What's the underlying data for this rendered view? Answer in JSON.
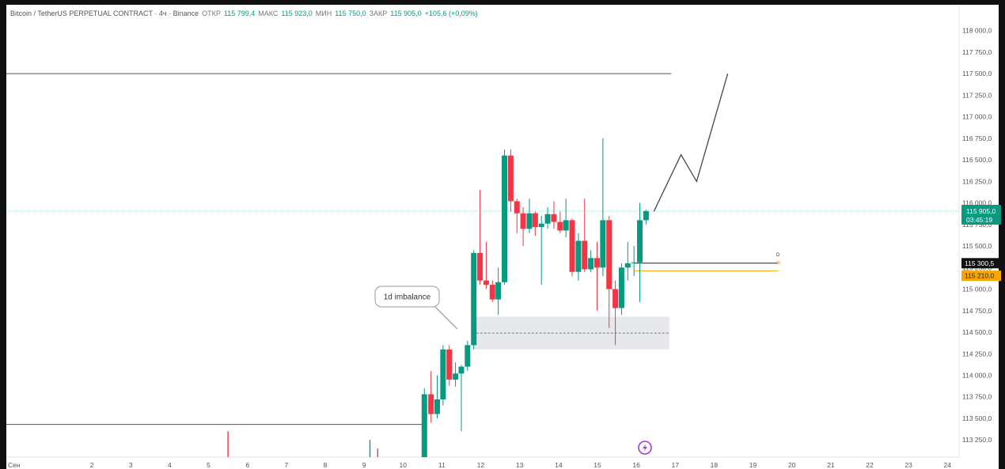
{
  "legend": {
    "symbol": "Bitcoin / TetherUS PERPETUAL CONTRACT · 4ч · Binance",
    "open_label": "ОТКР",
    "open": "115 799,4",
    "high_label": "МАКС",
    "high": "115 923,0",
    "low_label": "МИН",
    "low": "115 750,0",
    "close_label": "ЗАКР",
    "close": "115 905,0",
    "change": "+105,6 (+0,09%)"
  },
  "price_badges": {
    "last_price": "115 905,0",
    "countdown": "03:45:19",
    "level_1": "115 300,5",
    "level_2": "115 210,0"
  },
  "annotation": {
    "imbalance_label": "1d imbalance",
    "level_tag_1": "D",
    "level_tag_2": "W"
  },
  "colors": {
    "up": "#089981",
    "down": "#f23645",
    "last_price": "#089981",
    "level_1_badge": "#111111",
    "level_2_badge": "#f7a600",
    "zone": "#dfe0e6"
  },
  "icons": {
    "lightning": "lightning-icon"
  },
  "chart_data": {
    "type": "candlestick",
    "ylim": [
      113050,
      118300
    ],
    "y_ticks": [
      118000,
      117750,
      117500,
      117250,
      117000,
      116750,
      116500,
      116250,
      116000,
      115750,
      115500,
      115250,
      115000,
      114750,
      114500,
      114250,
      114000,
      113750,
      113500,
      113250
    ],
    "y_tick_labels": [
      "118 000,0",
      "117 750,0",
      "117 500,0",
      "117 250,0",
      "117 000,0",
      "116 750,0",
      "116 500,0",
      "116 250,0",
      "116 000,0",
      "115 750,0",
      "115 500,0",
      "115 250,0",
      "115 000,0",
      "114 750,0",
      "114 500,0",
      "114 250,0",
      "114 000,0",
      "113 750,0",
      "113 500,0",
      "113 250,0"
    ],
    "x_ticks": [
      0,
      2,
      3,
      4,
      5,
      6,
      7,
      8,
      9,
      10,
      11,
      12,
      13,
      14,
      15,
      16,
      17,
      18,
      19,
      20,
      21,
      22,
      23,
      24
    ],
    "x_tick_labels": [
      "Сен",
      "2",
      "3",
      "4",
      "5",
      "6",
      "7",
      "8",
      "9",
      "10",
      "11",
      "12",
      "13",
      "14",
      "15",
      "16",
      "17",
      "18",
      "19",
      "20",
      "21",
      "22",
      "23",
      "24"
    ],
    "xlim": [
      -0.2,
      24.3
    ],
    "candles": [
      {
        "t": 10.55,
        "o": 113050,
        "h": 113850,
        "l": 113050,
        "c": 113780
      },
      {
        "t": 10.72,
        "o": 113780,
        "h": 114050,
        "l": 113450,
        "c": 113550
      },
      {
        "t": 10.88,
        "o": 113550,
        "h": 114000,
        "l": 113500,
        "c": 113720
      },
      {
        "t": 11.03,
        "o": 113720,
        "h": 114350,
        "l": 113650,
        "c": 114300
      },
      {
        "t": 11.19,
        "o": 114300,
        "h": 114350,
        "l": 113880,
        "c": 113950
      },
      {
        "t": 11.35,
        "o": 113950,
        "h": 114150,
        "l": 113870,
        "c": 114020
      },
      {
        "t": 11.5,
        "o": 114020,
        "h": 114120,
        "l": 113350,
        "c": 114100
      },
      {
        "t": 11.66,
        "o": 114100,
        "h": 114400,
        "l": 114050,
        "c": 114350
      },
      {
        "t": 11.82,
        "o": 114350,
        "h": 115450,
        "l": 114300,
        "c": 115420
      },
      {
        "t": 11.98,
        "o": 115420,
        "h": 116150,
        "l": 115050,
        "c": 115100
      },
      {
        "t": 12.14,
        "o": 115100,
        "h": 115550,
        "l": 115000,
        "c": 115050
      },
      {
        "t": 12.3,
        "o": 115050,
        "h": 115100,
        "l": 114850,
        "c": 114880
      },
      {
        "t": 12.45,
        "o": 114880,
        "h": 115250,
        "l": 114700,
        "c": 115080
      },
      {
        "t": 12.61,
        "o": 115080,
        "h": 116620,
        "l": 115050,
        "c": 116550
      },
      {
        "t": 12.77,
        "o": 116550,
        "h": 116620,
        "l": 115900,
        "c": 116020
      },
      {
        "t": 12.93,
        "o": 116020,
        "h": 116050,
        "l": 115650,
        "c": 115880
      },
      {
        "t": 13.09,
        "o": 115880,
        "h": 115950,
        "l": 115500,
        "c": 115700
      },
      {
        "t": 13.25,
        "o": 115700,
        "h": 116050,
        "l": 115650,
        "c": 115880
      },
      {
        "t": 13.4,
        "o": 115880,
        "h": 115900,
        "l": 115620,
        "c": 115720
      },
      {
        "t": 13.56,
        "o": 115720,
        "h": 115850,
        "l": 115050,
        "c": 115760
      },
      {
        "t": 13.72,
        "o": 115760,
        "h": 115950,
        "l": 115700,
        "c": 115870
      },
      {
        "t": 13.88,
        "o": 115870,
        "h": 116020,
        "l": 115700,
        "c": 115780
      },
      {
        "t": 14.04,
        "o": 115780,
        "h": 115900,
        "l": 115650,
        "c": 115680
      },
      {
        "t": 14.19,
        "o": 115680,
        "h": 116050,
        "l": 115600,
        "c": 115800
      },
      {
        "t": 14.35,
        "o": 115800,
        "h": 115820,
        "l": 115150,
        "c": 115200
      },
      {
        "t": 14.51,
        "o": 115200,
        "h": 115650,
        "l": 115100,
        "c": 115560
      },
      {
        "t": 14.67,
        "o": 115560,
        "h": 116050,
        "l": 115200,
        "c": 115230
      },
      {
        "t": 14.83,
        "o": 115230,
        "h": 115450,
        "l": 115200,
        "c": 115360
      },
      {
        "t": 14.99,
        "o": 115360,
        "h": 115550,
        "l": 114750,
        "c": 115250
      },
      {
        "t": 15.14,
        "o": 115250,
        "h": 116750,
        "l": 115150,
        "c": 115800
      },
      {
        "t": 15.3,
        "o": 115800,
        "h": 115850,
        "l": 114550,
        "c": 115000
      },
      {
        "t": 15.46,
        "o": 115000,
        "h": 115100,
        "l": 114350,
        "c": 114780
      },
      {
        "t": 15.62,
        "o": 114780,
        "h": 115300,
        "l": 114700,
        "c": 115250
      },
      {
        "t": 15.78,
        "o": 115250,
        "h": 115550,
        "l": 115100,
        "c": 115300
      },
      {
        "t": 15.94,
        "o": 115300,
        "h": 115500,
        "l": 115150,
        "c": 115310
      },
      {
        "t": 16.09,
        "o": 115310,
        "h": 116000,
        "l": 114850,
        "c": 115800
      },
      {
        "t": 16.25,
        "o": 115800,
        "h": 115923,
        "l": 115750,
        "c": 115905
      }
    ],
    "drawings": {
      "horizontal_lines": [
        {
          "price": 117500,
          "t_start": -0.2,
          "t_end": 16.9
        },
        {
          "price": 113430,
          "t_start": -0.2,
          "t_end": 10.5
        }
      ],
      "imbalance_zone": {
        "top": 114680,
        "bottom": 114300,
        "mid": 114490,
        "t_start": 11.78,
        "t_end": 16.85
      },
      "levels": [
        {
          "price": 115300.5,
          "t_start": 15.95,
          "t_end": 19.65
        },
        {
          "price": 115210,
          "t_start": 15.95,
          "t_end": 19.65
        }
      ],
      "projection_path": [
        {
          "t": 16.45,
          "p": 115900
        },
        {
          "t": 17.15,
          "p": 116560
        },
        {
          "t": 17.55,
          "p": 116250
        },
        {
          "t": 18.35,
          "p": 117500
        }
      ],
      "bottom_ticks": [
        {
          "t": 5.5,
          "high": 113350,
          "low": 113050,
          "dir": "down"
        },
        {
          "t": 9.15,
          "high": 113250,
          "low": 113050,
          "dir": "up"
        },
        {
          "t": 9.35,
          "high": 113150,
          "low": 113050,
          "dir": "down"
        }
      ]
    }
  }
}
